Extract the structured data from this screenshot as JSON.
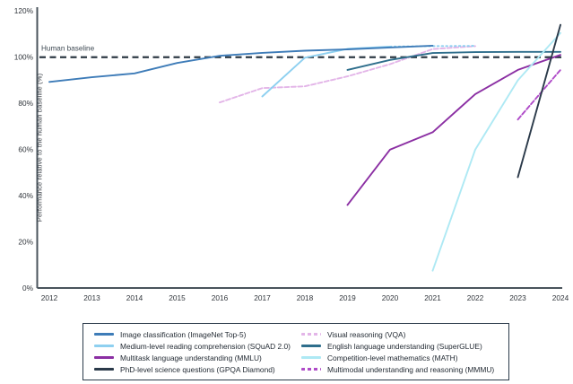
{
  "chart_data": {
    "type": "line",
    "title": "",
    "ylabel": "Performance relative to the human baseline (%)",
    "xlabel": "",
    "x_ticks": [
      "2012",
      "2013",
      "2014",
      "2015",
      "2016",
      "2017",
      "2018",
      "2019",
      "2020",
      "2021",
      "2022",
      "2023",
      "2024"
    ],
    "y_ticks": [
      "0%",
      "20%",
      "40%",
      "60%",
      "80%",
      "100%",
      "120%"
    ],
    "y_tick_values": [
      0,
      20,
      40,
      60,
      80,
      100,
      120
    ],
    "xlim": [
      2012,
      2024
    ],
    "ylim": [
      0,
      120
    ],
    "grid": false,
    "legend_position": "bottom",
    "baseline": {
      "label": "Human baseline",
      "value": 100,
      "color": "#2f3b45"
    },
    "series": [
      {
        "name": "Image classification (ImageNet Top-5)",
        "color": "#3e7cb8",
        "dash": "",
        "points": [
          [
            2012,
            89.3
          ],
          [
            2013,
            91.3
          ],
          [
            2014,
            93.0
          ],
          [
            2015,
            97.5
          ],
          [
            2016,
            100.6
          ],
          [
            2017,
            101.9
          ],
          [
            2018,
            102.8
          ],
          [
            2019,
            103.4
          ],
          [
            2020,
            104.2
          ],
          [
            2021,
            105.0
          ]
        ]
      },
      {
        "name": "Medium-level reading comprehension (SQuAD 2.0)",
        "color": "#8ed0f0",
        "dash": "",
        "dotted_after": 2020,
        "points": [
          [
            2017,
            83.0
          ],
          [
            2018,
            99.8
          ],
          [
            2019,
            103.6
          ],
          [
            2020,
            104.6
          ],
          [
            2021,
            104.8
          ],
          [
            2022,
            104.9
          ]
        ]
      },
      {
        "name": "Multitask language understanding (MMLU)",
        "color": "#8b2fa3",
        "dash": "",
        "points": [
          [
            2019,
            36.0
          ],
          [
            2020,
            60.0
          ],
          [
            2021,
            67.5
          ],
          [
            2022,
            84.0
          ],
          [
            2023,
            94.5
          ],
          [
            2024,
            101.0
          ]
        ]
      },
      {
        "name": "PhD-level science questions (GPQA Diamond)",
        "color": "#2b3a4a",
        "dash": "",
        "points": [
          [
            2023,
            48.0
          ],
          [
            2024,
            114.0
          ]
        ]
      },
      {
        "name": "Visual reasoning (VQA)",
        "color": "#e3b5e8",
        "dash": "5,2.5",
        "points": [
          [
            2016,
            80.4
          ],
          [
            2017,
            86.6
          ],
          [
            2018,
            87.4
          ],
          [
            2019,
            91.7
          ],
          [
            2020,
            97.0
          ],
          [
            2021,
            103.5
          ],
          [
            2022,
            104.8
          ]
        ]
      },
      {
        "name": "English language understanding (SuperGLUE)",
        "color": "#2e6e8c",
        "dash": "",
        "points": [
          [
            2019,
            94.5
          ],
          [
            2020,
            98.8
          ],
          [
            2021,
            101.8
          ],
          [
            2022,
            102.2
          ],
          [
            2023,
            102.3
          ],
          [
            2024,
            102.3
          ]
        ]
      },
      {
        "name": "Competition-level mathematics (MATH)",
        "color": "#aee9f4",
        "dash": "",
        "points": [
          [
            2021,
            7.5
          ],
          [
            2022,
            60.0
          ],
          [
            2023,
            90.0
          ],
          [
            2024,
            110.5
          ]
        ]
      },
      {
        "name": "Multimodal understanding and reasoning (MMMU)",
        "color": "#af4bc8",
        "dash": "5,2.5",
        "points": [
          [
            2023,
            73.0
          ],
          [
            2024,
            94.5
          ]
        ]
      }
    ]
  }
}
